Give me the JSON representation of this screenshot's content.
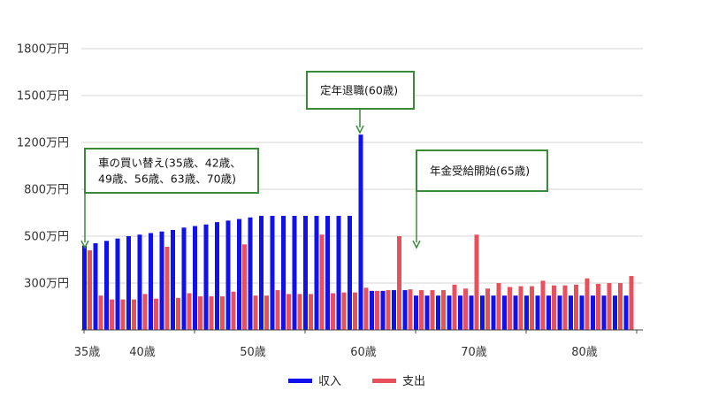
{
  "chart_data": {
    "type": "bar",
    "x": [
      35,
      36,
      37,
      38,
      39,
      40,
      41,
      42,
      43,
      44,
      45,
      46,
      47,
      48,
      49,
      50,
      51,
      52,
      53,
      54,
      55,
      56,
      57,
      58,
      59,
      60,
      61,
      62,
      63,
      64,
      65,
      66,
      67,
      68,
      69,
      70,
      71,
      72,
      73,
      74,
      75,
      76,
      77,
      78,
      79,
      80,
      81,
      82,
      83,
      84
    ],
    "x_tick_labels": [
      "35歳",
      "40歳",
      "50歳",
      "60歳",
      "70歳",
      "80歳"
    ],
    "x_tick_values": [
      35,
      40,
      50,
      60,
      70,
      80
    ],
    "y_tick_labels": [
      "1800万円",
      "1500万円",
      "1200万円",
      "800万円",
      "500万円",
      "300万円"
    ],
    "ylim": [
      0,
      1800
    ],
    "grid": true,
    "legend_position": "bottom",
    "series": [
      {
        "name": "収入",
        "color": "#1111ee",
        "values": [
          460,
          470,
          480,
          490,
          500,
          510,
          520,
          530,
          540,
          555,
          565,
          575,
          590,
          600,
          610,
          620,
          630,
          630,
          630,
          630,
          630,
          630,
          630,
          630,
          630,
          1250,
          250,
          250,
          255,
          255,
          220,
          220,
          220,
          220,
          220,
          220,
          220,
          220,
          220,
          220,
          220,
          220,
          220,
          220,
          220,
          220,
          220,
          220,
          220,
          220
        ]
      },
      {
        "name": "支出",
        "color": "#e8505b",
        "values": [
          440,
          220,
          195,
          195,
          195,
          230,
          200,
          455,
          205,
          235,
          215,
          215,
          215,
          245,
          465,
          220,
          220,
          255,
          230,
          230,
          230,
          510,
          235,
          240,
          240,
          270,
          250,
          255,
          500,
          260,
          255,
          255,
          255,
          290,
          265,
          510,
          265,
          300,
          275,
          280,
          280,
          310,
          285,
          285,
          290,
          320,
          295,
          300,
          300,
          330
        ]
      }
    ],
    "annotations": [
      {
        "lines": [
          "車の買い替え(35歳、42歳、",
          "49歳、56歳、63歳、70歳)"
        ],
        "target_x": 35
      },
      {
        "lines": [
          "定年退職(60歳)"
        ],
        "target_x": 60
      },
      {
        "lines": [
          "年金受給開始(65歳)"
        ],
        "target_x": 65
      }
    ],
    "annotation_color": "#3a8a3a"
  }
}
